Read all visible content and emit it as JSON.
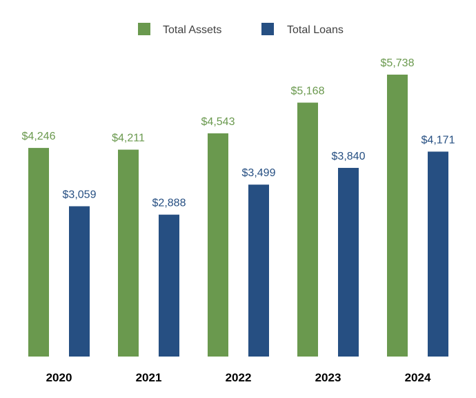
{
  "chart_data": {
    "type": "bar",
    "title": "",
    "xlabel": "",
    "ylabel": "",
    "categories": [
      "2020",
      "2021",
      "2022",
      "2023",
      "2024"
    ],
    "series": [
      {
        "name": "Total Assets",
        "values": [
          4246,
          4211,
          4543,
          5168,
          5738
        ],
        "labels": [
          "$4,246",
          "$4,211",
          "$4,543",
          "$5,168",
          "$5,738"
        ],
        "color": "#6a994e"
      },
      {
        "name": "Total Loans",
        "values": [
          3059,
          2888,
          3499,
          3840,
          4171
        ],
        "labels": [
          "$3,059",
          "$2,888",
          "$3,499",
          "$3,840",
          "$4,171"
        ],
        "color": "#264f82"
      }
    ],
    "ylim": [
      0,
      5738
    ],
    "grid": false,
    "legend_position": "top-center"
  }
}
